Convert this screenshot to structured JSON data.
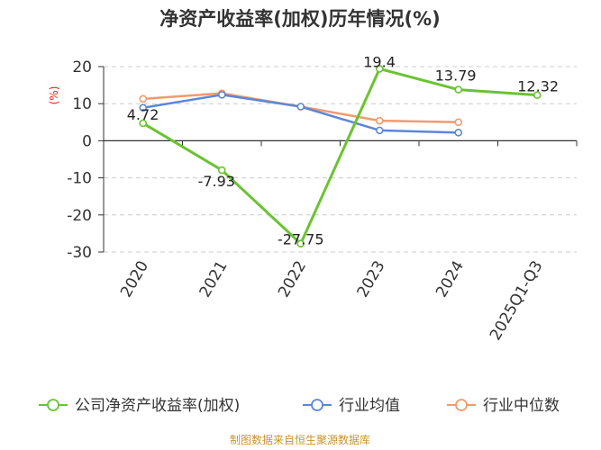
{
  "chart_data": {
    "type": "line",
    "title": "净资产收益率(加权)历年情况(%)",
    "ylabel": "(%)",
    "xlabel": "",
    "categories": [
      "2020",
      "2021",
      "2022",
      "2023",
      "2024",
      "2025Q1-Q3"
    ],
    "ylim": [
      -30,
      20
    ],
    "yticks": [
      20,
      10,
      0,
      -10,
      -20,
      -30
    ],
    "grid": "horizontal-dashed",
    "legend_position": "bottom",
    "series": [
      {
        "name": "公司净资产收益率(加权)",
        "color": "#6ac332",
        "values": [
          4.72,
          -7.93,
          -27.75,
          19.4,
          13.79,
          12.32
        ],
        "labels": [
          "4.72",
          "-7.93",
          "-27.75",
          "19.4",
          "13.79",
          "12.32"
        ]
      },
      {
        "name": "行业均值",
        "color": "#5b87d9",
        "values": [
          8.9,
          12.4,
          9.2,
          2.8,
          2.2,
          null
        ]
      },
      {
        "name": "行业中位数",
        "color": "#f39a6c",
        "values": [
          11.3,
          12.8,
          9.2,
          5.4,
          5.0,
          null
        ]
      }
    ]
  },
  "source": "制图数据来自恒生聚源数据库"
}
